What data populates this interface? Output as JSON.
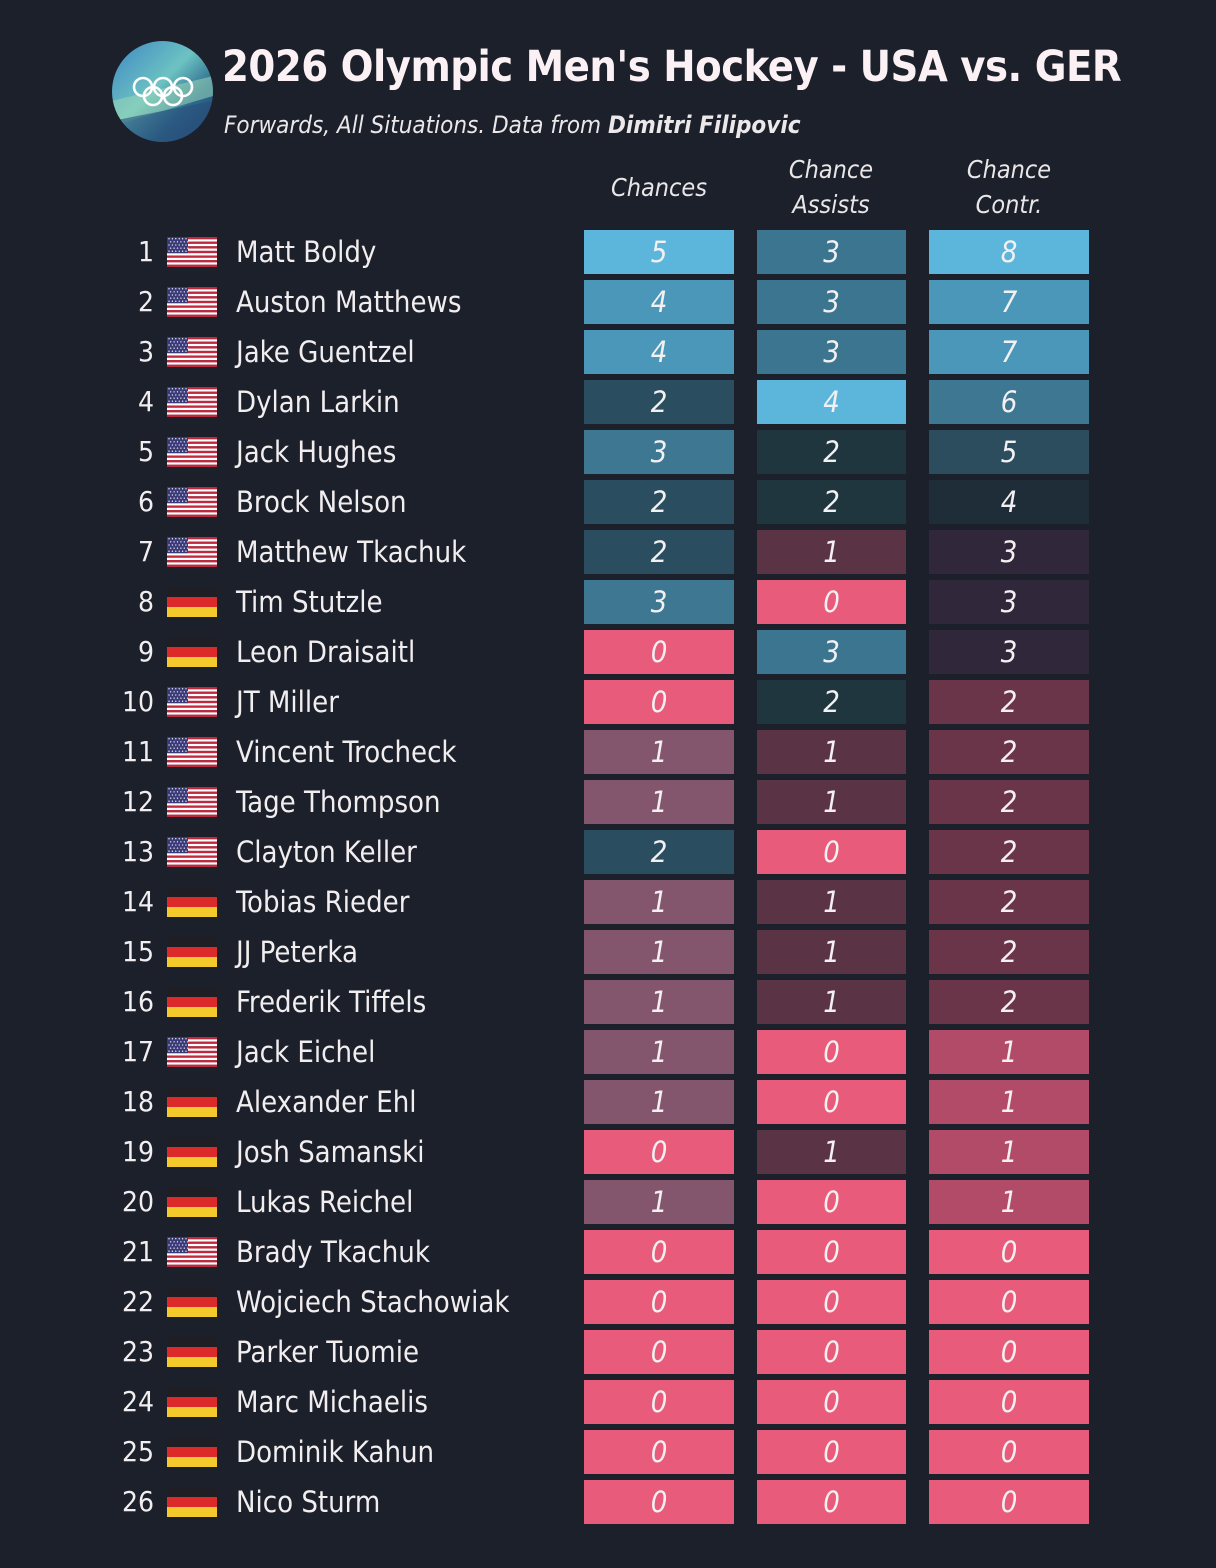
{
  "header": {
    "title": "2026 Olympic Men's Hockey - USA vs. GER",
    "subtitle_prefix": "Forwards, All Situations. Data from ",
    "subtitle_source": "Dimitri Filipovic"
  },
  "logo": {
    "icon": "olympic-rings-icon"
  },
  "colors": {
    "background": "#1b202a",
    "high": "#5ab4dc",
    "zero": "#e85b7a"
  },
  "chart_data": {
    "type": "table",
    "title": "2026 Olympic Men's Hockey - USA vs. GER",
    "subtitle": "Forwards, All Situations. Data from Dimitri Filipovic",
    "columns": [
      {
        "key": "chances",
        "label_lines": [
          "Chances"
        ]
      },
      {
        "key": "assists",
        "label_lines": [
          "Chance",
          "Assists"
        ]
      },
      {
        "key": "contr",
        "label_lines": [
          "Chance",
          "Contr."
        ]
      }
    ],
    "rows": [
      {
        "rank": "1",
        "flag": "usa",
        "name": "Matt Boldy",
        "values": [
          5,
          3,
          8
        ]
      },
      {
        "rank": "2",
        "flag": "usa",
        "name": "Auston Matthews",
        "values": [
          4,
          3,
          7
        ]
      },
      {
        "rank": "3",
        "flag": "usa",
        "name": "Jake Guentzel",
        "values": [
          4,
          3,
          7
        ]
      },
      {
        "rank": "4",
        "flag": "usa",
        "name": "Dylan Larkin",
        "values": [
          2,
          4,
          6
        ]
      },
      {
        "rank": "5",
        "flag": "usa",
        "name": "Jack Hughes",
        "values": [
          3,
          2,
          5
        ]
      },
      {
        "rank": "6",
        "flag": "usa",
        "name": "Brock Nelson",
        "values": [
          2,
          2,
          4
        ]
      },
      {
        "rank": "7",
        "flag": "usa",
        "name": "Matthew Tkachuk",
        "values": [
          2,
          1,
          3
        ]
      },
      {
        "rank": "8",
        "flag": "ger",
        "name": "Tim Stutzle",
        "values": [
          3,
          0,
          3
        ]
      },
      {
        "rank": "9",
        "flag": "ger",
        "name": "Leon Draisaitl",
        "values": [
          0,
          3,
          3
        ]
      },
      {
        "rank": "10",
        "flag": "usa",
        "name": "JT Miller",
        "values": [
          0,
          2,
          2
        ]
      },
      {
        "rank": "11",
        "flag": "usa",
        "name": "Vincent Trocheck",
        "values": [
          1,
          1,
          2
        ]
      },
      {
        "rank": "12",
        "flag": "usa",
        "name": "Tage Thompson",
        "values": [
          1,
          1,
          2
        ]
      },
      {
        "rank": "13",
        "flag": "usa",
        "name": "Clayton Keller",
        "values": [
          2,
          0,
          2
        ]
      },
      {
        "rank": "14",
        "flag": "ger",
        "name": "Tobias Rieder",
        "values": [
          1,
          1,
          2
        ]
      },
      {
        "rank": "15",
        "flag": "ger",
        "name": "JJ Peterka",
        "values": [
          1,
          1,
          2
        ]
      },
      {
        "rank": "16",
        "flag": "ger",
        "name": "Frederik Tiffels",
        "values": [
          1,
          1,
          2
        ]
      },
      {
        "rank": "17",
        "flag": "usa",
        "name": "Jack Eichel",
        "values": [
          1,
          0,
          1
        ]
      },
      {
        "rank": "18",
        "flag": "ger",
        "name": "Alexander Ehl",
        "values": [
          1,
          0,
          1
        ]
      },
      {
        "rank": "19",
        "flag": "ger",
        "name": "Josh Samanski",
        "values": [
          0,
          1,
          1
        ]
      },
      {
        "rank": "20",
        "flag": "ger",
        "name": "Lukas Reichel",
        "values": [
          1,
          0,
          1
        ]
      },
      {
        "rank": "21",
        "flag": "usa",
        "name": "Brady Tkachuk",
        "values": [
          0,
          0,
          0
        ]
      },
      {
        "rank": "22",
        "flag": "ger",
        "name": "Wojciech Stachowiak",
        "values": [
          0,
          0,
          0
        ]
      },
      {
        "rank": "23",
        "flag": "ger",
        "name": "Parker Tuomie",
        "values": [
          0,
          0,
          0
        ]
      },
      {
        "rank": "24",
        "flag": "ger",
        "name": "Marc Michaelis",
        "values": [
          0,
          0,
          0
        ]
      },
      {
        "rank": "25",
        "flag": "ger",
        "name": "Dominik Kahun",
        "values": [
          0,
          0,
          0
        ]
      },
      {
        "rank": "26",
        "flag": "ger",
        "name": "Nico Sturm",
        "values": [
          0,
          0,
          0
        ]
      }
    ]
  }
}
